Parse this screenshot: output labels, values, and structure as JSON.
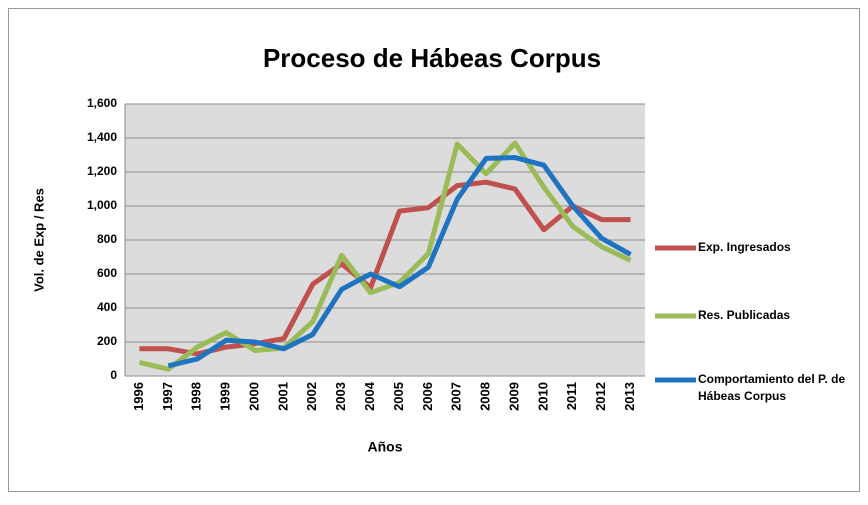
{
  "chart_data": {
    "type": "line",
    "title": "Proceso de Hábeas Corpus",
    "x_label": "Años",
    "y_label": "Vol. de Exp / Res",
    "categories": [
      "1996",
      "1997",
      "1998",
      "1999",
      "2000",
      "2001",
      "2002",
      "2003",
      "2004",
      "2005",
      "2006",
      "2007",
      "2008",
      "2009",
      "2010",
      "2011",
      "2012",
      "2013"
    ],
    "series": [
      {
        "name": "Exp. Ingresados",
        "color": "#c0504d",
        "values": [
          160,
          160,
          130,
          170,
          190,
          220,
          540,
          660,
          520,
          970,
          990,
          1120,
          1140,
          1100,
          860,
          1000,
          920,
          920
        ]
      },
      {
        "name": "Res. Publicadas",
        "color": "#9bbb59",
        "values": [
          80,
          40,
          170,
          255,
          150,
          165,
          320,
          710,
          490,
          550,
          720,
          1365,
          1190,
          1370,
          1110,
          880,
          760,
          680
        ]
      },
      {
        "name": "Comportamiento del P. de Hábeas Corpus",
        "color": "#1f74c2",
        "values": [
          null,
          60,
          100,
          210,
          200,
          160,
          245,
          510,
          600,
          525,
          640,
          1040,
          1280,
          1285,
          1240,
          1000,
          810,
          715
        ]
      }
    ],
    "ylim": [
      0,
      1600
    ],
    "yticks": [
      0,
      200,
      400,
      600,
      800,
      {
        "value": 1000,
        "label": "1,000"
      },
      {
        "value": 1200,
        "label": "1,200"
      },
      {
        "value": 1400,
        "label": "1,400"
      },
      {
        "value": 1600,
        "label": "1,600"
      }
    ],
    "grid": true,
    "legend": "right"
  }
}
